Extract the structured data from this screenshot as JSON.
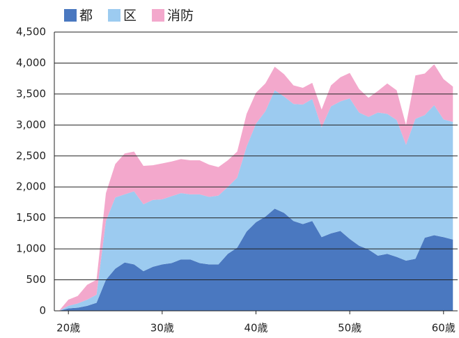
{
  "chart_data": {
    "type": "area",
    "stacked": true,
    "x": [
      19,
      20,
      21,
      22,
      23,
      24,
      25,
      26,
      27,
      28,
      29,
      30,
      31,
      32,
      33,
      34,
      35,
      36,
      37,
      38,
      39,
      40,
      41,
      42,
      43,
      44,
      45,
      46,
      47,
      48,
      49,
      50,
      51,
      52,
      53,
      54,
      55,
      56,
      57,
      58,
      59,
      60,
      61
    ],
    "series": [
      {
        "name": "都",
        "color": "#4a78c0",
        "values": [
          0,
          40,
          50,
          80,
          130,
          500,
          680,
          780,
          750,
          640,
          710,
          750,
          770,
          830,
          830,
          770,
          750,
          750,
          920,
          1020,
          1280,
          1430,
          1520,
          1650,
          1580,
          1450,
          1400,
          1450,
          1190,
          1250,
          1290,
          1160,
          1050,
          990,
          890,
          920,
          870,
          810,
          840,
          1180,
          1220,
          1190,
          1150
        ]
      },
      {
        "name": "区",
        "color": "#9ccbf0",
        "values": [
          0,
          40,
          70,
          100,
          130,
          950,
          1150,
          1100,
          1180,
          1080,
          1080,
          1050,
          1080,
          1070,
          1050,
          1110,
          1090,
          1110,
          1080,
          1130,
          1370,
          1590,
          1700,
          1910,
          1880,
          1890,
          1930,
          1970,
          1770,
          2050,
          2090,
          2270,
          2150,
          2140,
          2310,
          2260,
          2210,
          1870,
          2260,
          1980,
          2100,
          1900,
          1900
        ]
      },
      {
        "name": "消防",
        "color": "#f3a8cc",
        "values": [
          0,
          100,
          120,
          240,
          240,
          450,
          540,
          660,
          640,
          620,
          560,
          580,
          560,
          550,
          550,
          550,
          520,
          460,
          430,
          420,
          530,
          500,
          450,
          380,
          360,
          300,
          270,
          260,
          290,
          340,
          390,
          410,
          380,
          310,
          350,
          490,
          480,
          320,
          700,
          670,
          660,
          650,
          570
        ]
      }
    ],
    "xlim": [
      18.5,
      61.5
    ],
    "xticks": [
      {
        "value": 20,
        "label": "20歳"
      },
      {
        "value": 30,
        "label": "30歳"
      },
      {
        "value": 40,
        "label": "40歳"
      },
      {
        "value": 50,
        "label": "50歳"
      },
      {
        "value": 60,
        "label": "60歳"
      }
    ],
    "ylim": [
      0,
      4500
    ],
    "yticks": [
      0,
      {
        "value": 500,
        "label": "500"
      },
      {
        "value": 1000,
        "label": "1,000"
      },
      {
        "value": 1500,
        "label": "1,500"
      },
      {
        "value": 2000,
        "label": "2,000"
      },
      {
        "value": 2500,
        "label": "2,500"
      },
      {
        "value": 3000,
        "label": "3,000"
      },
      {
        "value": 3500,
        "label": "3,500"
      },
      {
        "value": 4000,
        "label": "4,000"
      },
      {
        "value": 4500,
        "label": "4,500"
      }
    ],
    "grid": true,
    "legend": "top-left"
  }
}
